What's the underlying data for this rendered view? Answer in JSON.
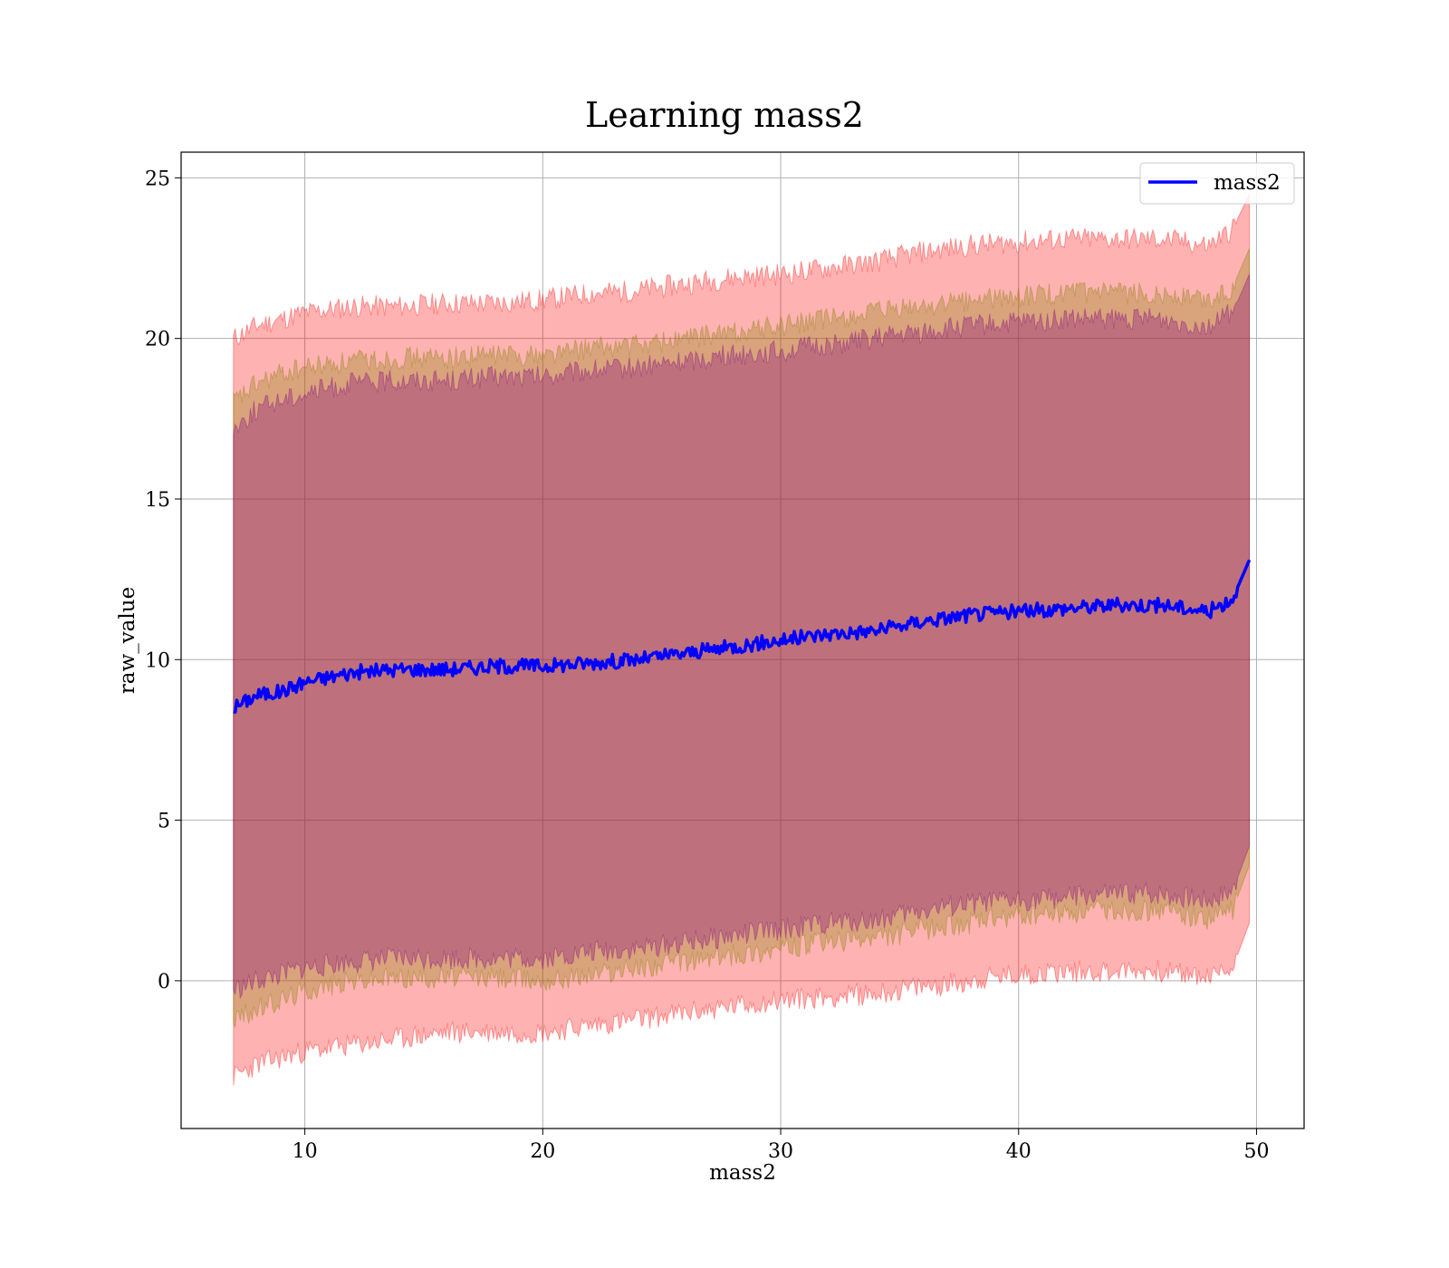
{
  "chart_data": {
    "type": "line",
    "title": "Learning mass2",
    "xlabel": "mass2",
    "ylabel": "raw_value",
    "xlim": [
      4.8,
      52
    ],
    "ylim": [
      -4.6,
      25.8
    ],
    "xticks": [
      10,
      20,
      30,
      40,
      50
    ],
    "yticks": [
      0,
      5,
      10,
      15,
      20,
      25
    ],
    "grid": true,
    "legend": {
      "placement": "top-right",
      "entries": [
        "mass2"
      ]
    },
    "colors": {
      "line": "#0000ff",
      "outer_band": "#ff0000",
      "middle_band": "#808000",
      "inner_band": "#800080",
      "grid": "#b0b0b0"
    },
    "series": [
      {
        "name": "mass2",
        "x": [
          7,
          8,
          9,
          10,
          12,
          14,
          16,
          18,
          20,
          22,
          24,
          26,
          28,
          30,
          32,
          34,
          36,
          38,
          40,
          42,
          44,
          46,
          48,
          49,
          49.7
        ],
        "y": [
          8.5,
          8.9,
          9.0,
          9.3,
          9.6,
          9.7,
          9.7,
          9.8,
          9.8,
          9.9,
          10.0,
          10.2,
          10.4,
          10.6,
          10.8,
          10.9,
          11.2,
          11.4,
          11.5,
          11.6,
          11.7,
          11.7,
          11.5,
          11.9,
          13.1
        ]
      }
    ],
    "bands": [
      {
        "x": [
          7,
          8,
          9,
          10,
          12,
          14,
          16,
          18,
          20,
          22,
          24,
          26,
          28,
          30,
          32,
          34,
          36,
          38,
          40,
          42,
          44,
          46,
          48,
          49,
          49.7
        ],
        "upper": [
          20.0,
          20.4,
          20.6,
          20.8,
          21.0,
          21.0,
          21.1,
          21.1,
          21.2,
          21.4,
          21.5,
          21.7,
          21.9,
          22.0,
          22.2,
          22.4,
          22.7,
          22.9,
          23.0,
          23.1,
          23.1,
          23.1,
          22.9,
          23.4,
          24.5
        ],
        "lower": [
          -3.0,
          -2.6,
          -2.4,
          -2.2,
          -2.0,
          -1.8,
          -1.6,
          -1.6,
          -1.6,
          -1.4,
          -1.2,
          -1.0,
          -0.8,
          -0.6,
          -0.5,
          -0.4,
          -0.2,
          0.0,
          0.2,
          0.3,
          0.3,
          0.3,
          0.1,
          0.4,
          1.8
        ]
      },
      {
        "x": [
          7,
          8,
          9,
          10,
          12,
          14,
          16,
          18,
          20,
          22,
          24,
          26,
          28,
          30,
          32,
          34,
          36,
          38,
          40,
          42,
          44,
          46,
          48,
          49,
          49.7
        ],
        "upper": [
          18.0,
          18.6,
          18.9,
          19.1,
          19.3,
          19.4,
          19.4,
          19.5,
          19.5,
          19.7,
          19.8,
          20.0,
          20.2,
          20.4,
          20.6,
          20.8,
          21.0,
          21.2,
          21.3,
          21.4,
          21.4,
          21.4,
          21.2,
          21.6,
          22.8
        ],
        "lower": [
          -1.2,
          -0.9,
          -0.6,
          -0.3,
          0.0,
          0.1,
          0.1,
          0.1,
          0.0,
          0.2,
          0.4,
          0.6,
          0.8,
          1.0,
          1.2,
          1.3,
          1.6,
          1.8,
          2.0,
          2.1,
          2.2,
          2.2,
          1.9,
          2.2,
          3.6
        ]
      },
      {
        "x": [
          7,
          8,
          9,
          10,
          12,
          14,
          16,
          18,
          20,
          22,
          24,
          26,
          28,
          30,
          32,
          34,
          36,
          38,
          40,
          42,
          44,
          46,
          48,
          49,
          49.7
        ],
        "upper": [
          17.2,
          17.8,
          18.1,
          18.3,
          18.6,
          18.7,
          18.7,
          18.8,
          18.8,
          19.0,
          19.1,
          19.3,
          19.5,
          19.6,
          19.8,
          20.0,
          20.2,
          20.4,
          20.5,
          20.6,
          20.6,
          20.6,
          20.4,
          20.8,
          22.0
        ],
        "lower": [
          -0.3,
          0.0,
          0.2,
          0.4,
          0.6,
          0.7,
          0.7,
          0.7,
          0.7,
          0.9,
          1.0,
          1.2,
          1.4,
          1.6,
          1.8,
          1.9,
          2.2,
          2.4,
          2.5,
          2.6,
          2.7,
          2.7,
          2.5,
          2.8,
          4.2
        ]
      }
    ]
  }
}
